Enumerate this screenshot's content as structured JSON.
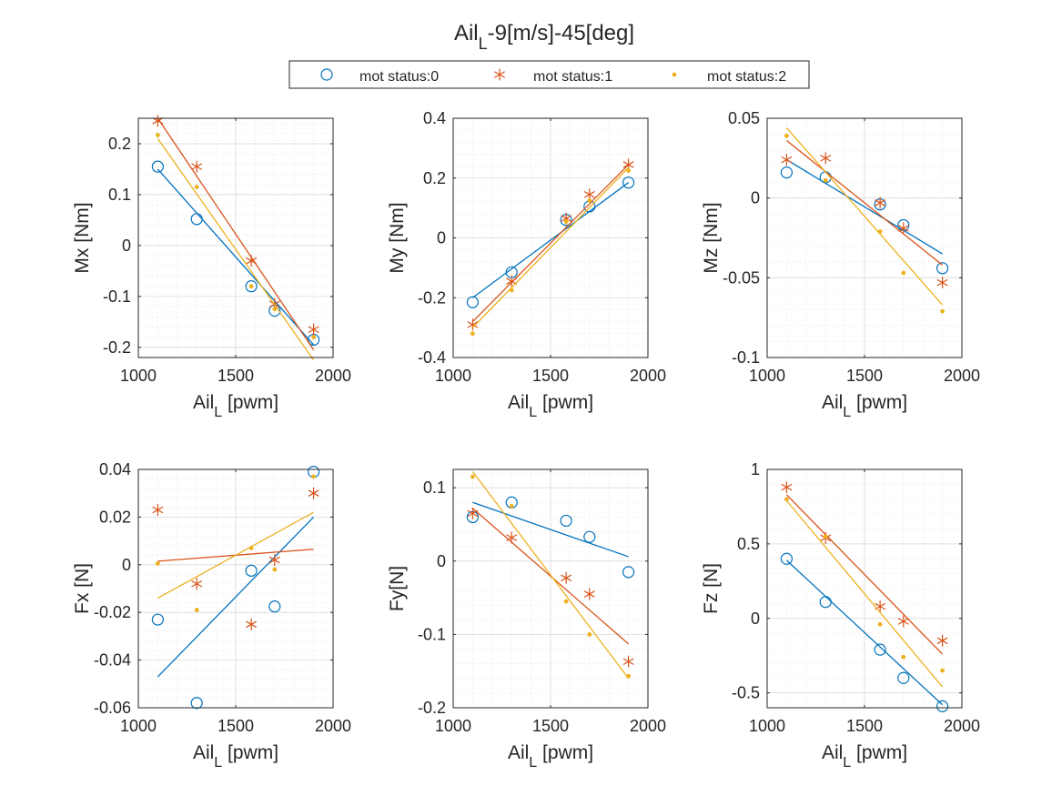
{
  "figure": {
    "title_base": "Ail",
    "title_sub": "L",
    "title_rest": "-9[m/s]-45[deg]"
  },
  "legend": {
    "placement": "top-center",
    "entries": [
      {
        "label": "mot status:0",
        "marker": "circle",
        "color": "#0072BD"
      },
      {
        "label": "mot status:1",
        "marker": "asterisk",
        "color": "#D95319"
      },
      {
        "label": "mot status:2",
        "marker": "dot",
        "color": "#EDB120"
      }
    ]
  },
  "colors": {
    "series0": "#0072BD",
    "series1": "#D95319",
    "series2": "#EDB120",
    "grid": "#d9d9d9",
    "axis": "#262626"
  },
  "chart_data": [
    {
      "type": "scatter",
      "ylabel": "Mx [Nm]",
      "xlabel_base": "Ail",
      "xlabel_sub": "L",
      "xlabel_rest": " [pwm]",
      "xlim": [
        1000,
        2000
      ],
      "ylim": [
        -0.22,
        0.25
      ],
      "xticks": [
        1000,
        1500,
        2000
      ],
      "xtick_labels": [
        "1000",
        "1500",
        "2000"
      ],
      "yticks": [
        -0.2,
        -0.1,
        0,
        0.1,
        0.2
      ],
      "ytick_labels": [
        "-0.2",
        "-0.1",
        "0",
        "0.1",
        "0.2"
      ],
      "grid": true,
      "minor_grid": true,
      "x": [
        1100,
        1300,
        1580,
        1700,
        1900
      ],
      "series": [
        {
          "values": [
            0.155,
            0.052,
            -0.08,
            -0.128,
            -0.185
          ],
          "fit": [
            0.15,
            -0.195
          ]
        },
        {
          "values": [
            0.245,
            0.155,
            -0.03,
            -0.115,
            -0.165
          ],
          "fit": [
            0.25,
            -0.205
          ]
        },
        {
          "values": [
            0.217,
            0.115,
            -0.08,
            -0.125,
            -0.18
          ],
          "fit": [
            0.21,
            -0.225
          ]
        }
      ]
    },
    {
      "type": "scatter",
      "ylabel": "My [Nm]",
      "xlabel_base": "Ail",
      "xlabel_sub": "L",
      "xlabel_rest": " [pwm]",
      "xlim": [
        1000,
        2000
      ],
      "ylim": [
        -0.4,
        0.4
      ],
      "xticks": [
        1000,
        1500,
        2000
      ],
      "xtick_labels": [
        "1000",
        "1500",
        "2000"
      ],
      "yticks": [
        -0.4,
        -0.2,
        0,
        0.2,
        0.4
      ],
      "ytick_labels": [
        "-0.4",
        "-0.2",
        "0",
        "0.2",
        "0.4"
      ],
      "grid": true,
      "minor_grid": true,
      "x": [
        1100,
        1300,
        1580,
        1700,
        1900
      ],
      "series": [
        {
          "values": [
            -0.215,
            -0.115,
            0.06,
            0.105,
            0.185
          ],
          "fit": [
            -0.2,
            0.185
          ]
        },
        {
          "values": [
            -0.29,
            -0.145,
            0.065,
            0.145,
            0.245
          ],
          "fit": [
            -0.28,
            0.245
          ]
        },
        {
          "values": [
            -0.32,
            -0.175,
            0.055,
            0.125,
            0.225
          ],
          "fit": [
            -0.3,
            0.235
          ]
        }
      ]
    },
    {
      "type": "scatter",
      "ylabel": "Mz [Nm]",
      "xlabel_base": "Ail",
      "xlabel_sub": "L",
      "xlabel_rest": " [pwm]",
      "xlim": [
        1000,
        2000
      ],
      "ylim": [
        -0.1,
        0.05
      ],
      "xticks": [
        1000,
        1500,
        2000
      ],
      "xtick_labels": [
        "1000",
        "1500",
        "2000"
      ],
      "yticks": [
        -0.1,
        -0.05,
        0,
        0.05
      ],
      "ytick_labels": [
        "-0.1",
        "-0.05",
        "0",
        "0.05"
      ],
      "grid": true,
      "minor_grid": true,
      "x": [
        1100,
        1300,
        1580,
        1700,
        1900
      ],
      "series": [
        {
          "values": [
            0.016,
            0.013,
            -0.004,
            -0.017,
            -0.044
          ],
          "fit": [
            0.024,
            -0.035
          ]
        },
        {
          "values": [
            0.024,
            0.025,
            -0.003,
            -0.019,
            -0.053
          ],
          "fit": [
            0.036,
            -0.042
          ]
        },
        {
          "values": [
            0.039,
            0.011,
            -0.021,
            -0.047,
            -0.071
          ],
          "fit": [
            0.044,
            -0.067
          ]
        }
      ]
    },
    {
      "type": "scatter",
      "ylabel": "Fx [N]",
      "xlabel_base": "Ail",
      "xlabel_sub": "L",
      "xlabel_rest": " [pwm]",
      "xlim": [
        1000,
        2000
      ],
      "ylim": [
        -0.06,
        0.04
      ],
      "xticks": [
        1000,
        1500,
        2000
      ],
      "xtick_labels": [
        "1000",
        "1500",
        "2000"
      ],
      "yticks": [
        -0.06,
        -0.04,
        -0.02,
        0,
        0.02,
        0.04
      ],
      "ytick_labels": [
        "-0.06",
        "-0.04",
        "-0.02",
        "0",
        "0.02",
        "0.04"
      ],
      "grid": true,
      "minor_grid": true,
      "x": [
        1100,
        1300,
        1580,
        1700,
        1900
      ],
      "series": [
        {
          "values": [
            -0.023,
            -0.058,
            -0.0025,
            -0.0175,
            0.039
          ],
          "fit": [
            -0.047,
            0.02
          ]
        },
        {
          "values": [
            0.023,
            -0.008,
            -0.025,
            0.002,
            0.03
          ],
          "fit": [
            0.0015,
            0.0065
          ]
        },
        {
          "values": [
            0.0005,
            -0.019,
            0.007,
            -0.002,
            0.037
          ],
          "fit": [
            -0.014,
            0.022
          ]
        }
      ]
    },
    {
      "type": "scatter",
      "ylabel": "Fy[N]",
      "xlabel_base": "Ail",
      "xlabel_sub": "L",
      "xlabel_rest": " [pwm]",
      "xlim": [
        1000,
        2000
      ],
      "ylim": [
        -0.2,
        0.125
      ],
      "xticks": [
        1000,
        1500,
        2000
      ],
      "xtick_labels": [
        "1000",
        "1500",
        "2000"
      ],
      "yticks": [
        -0.2,
        -0.1,
        0,
        0.1
      ],
      "ytick_labels": [
        "-0.2",
        "-0.1",
        "0",
        "0.1"
      ],
      "grid": true,
      "minor_grid": true,
      "x": [
        1100,
        1300,
        1580,
        1700,
        1900
      ],
      "series": [
        {
          "values": [
            0.06,
            0.08,
            0.055,
            0.033,
            -0.015
          ],
          "fit": [
            0.08,
            0.006
          ]
        },
        {
          "values": [
            0.065,
            0.032,
            -0.023,
            -0.045,
            -0.137
          ],
          "fit": [
            0.072,
            -0.113
          ]
        },
        {
          "values": [
            0.115,
            0.075,
            -0.055,
            -0.1,
            -0.157
          ],
          "fit": [
            0.122,
            -0.16
          ]
        }
      ]
    },
    {
      "type": "scatter",
      "ylabel": "Fz [N]",
      "xlabel_base": "Ail",
      "xlabel_sub": "L",
      "xlabel_rest": " [pwm]",
      "xlim": [
        1000,
        2000
      ],
      "ylim": [
        -0.6,
        1.0
      ],
      "xticks": [
        1000,
        1500,
        2000
      ],
      "xtick_labels": [
        "1000",
        "1500",
        "2000"
      ],
      "yticks": [
        -0.5,
        0,
        0.5,
        1
      ],
      "ytick_labels": [
        "-0.5",
        "0",
        "0.5",
        "1"
      ],
      "grid": true,
      "minor_grid": true,
      "x": [
        1100,
        1300,
        1580,
        1700,
        1900
      ],
      "series": [
        {
          "values": [
            0.4,
            0.11,
            -0.21,
            -0.4,
            -0.59
          ],
          "fit": [
            0.39,
            -0.58
          ]
        },
        {
          "values": [
            0.88,
            0.54,
            0.08,
            -0.02,
            -0.15
          ],
          "fit": [
            0.83,
            -0.24
          ]
        },
        {
          "values": [
            0.8,
            0.55,
            -0.04,
            -0.26,
            -0.35
          ],
          "fit": [
            0.79,
            -0.46
          ]
        }
      ]
    }
  ]
}
